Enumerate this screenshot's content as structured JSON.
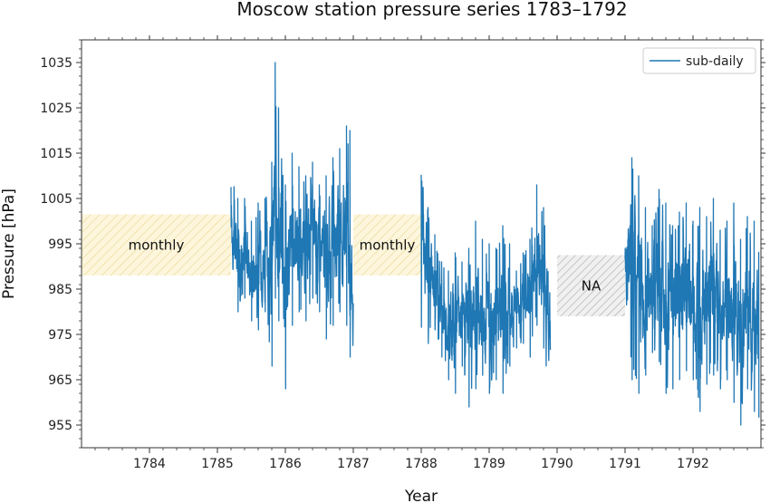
{
  "chart_data": {
    "type": "line",
    "title": "Moscow station pressure series 1783–1792",
    "xlabel": "Year",
    "ylabel": "Pressure [hPa]",
    "xlim": [
      1783.0,
      1793.0
    ],
    "ylim": [
      950,
      1040
    ],
    "x_ticks": [
      1784,
      1785,
      1786,
      1787,
      1788,
      1789,
      1790,
      1791,
      1792
    ],
    "x_tick_labels": [
      "1784",
      "1785",
      "1786",
      "1787",
      "1788",
      "1789",
      "1790",
      "1791",
      "1792"
    ],
    "y_ticks": [
      955,
      965,
      975,
      985,
      995,
      1005,
      1015,
      1025,
      1035
    ],
    "y_tick_labels": [
      "955",
      "965",
      "975",
      "985",
      "995",
      "1005",
      "1015",
      "1025",
      "1035"
    ],
    "grid": false,
    "legend_position": "top-right",
    "series": [
      {
        "name": "sub-daily",
        "color": "#1f77b4",
        "segments": [
          {
            "x": [
              1785.2,
              1785.3,
              1785.4,
              1785.5,
              1785.6,
              1785.7,
              1785.8,
              1785.85,
              1785.9,
              1786.0,
              1786.1,
              1786.2,
              1786.3,
              1786.4,
              1786.5,
              1786.6,
              1786.7,
              1786.8,
              1786.9,
              1786.95,
              1787.0
            ],
            "min": [
              986,
              980,
              983,
              978,
              976,
              980,
              968,
              983,
              978,
              963,
              977,
              980,
              978,
              983,
              980,
              974,
              977,
              980,
              977,
              970,
              959
            ],
            "max": [
              1013,
              1005,
              1005,
              1000,
              1004,
              1005,
              1013,
              1035,
              1025,
              1008,
              1015,
              1012,
              1010,
              1013,
              1008,
              1010,
              1014,
              1016,
              1021,
              1020,
              1000
            ]
          },
          {
            "x": [
              1788.0,
              1788.1,
              1788.2,
              1788.3,
              1788.4,
              1788.5,
              1788.6,
              1788.7,
              1788.8,
              1788.9,
              1789.0,
              1789.1,
              1789.2,
              1789.3,
              1789.4,
              1789.5,
              1789.6,
              1789.7,
              1789.8,
              1789.9
            ],
            "min": [
              975,
              973,
              976,
              970,
              965,
              962,
              968,
              959,
              963,
              966,
              962,
              965,
              962,
              968,
              972,
              973,
              970,
              977,
              972,
              959
            ],
            "max": [
              1012,
              1003,
              997,
              991,
              989,
              993,
              991,
              994,
              1000,
              996,
              995,
              994,
              999,
              995,
              989,
              993,
              996,
              1008,
              1003,
              990
            ]
          },
          {
            "x": [
              1791.0,
              1791.1,
              1791.2,
              1791.3,
              1791.4,
              1791.5,
              1791.6,
              1791.7,
              1791.8,
              1791.9,
              1792.0,
              1792.1,
              1792.2,
              1792.3,
              1792.4,
              1792.5,
              1792.6,
              1792.7,
              1792.8,
              1792.9,
              1792.97
            ],
            "min": [
              978,
              965,
              962,
              966,
              971,
              969,
              962,
              963,
              965,
              967,
              965,
              958,
              964,
              966,
              963,
              965,
              960,
              955,
              963,
              958,
              955
            ],
            "max": [
              999,
              1014,
              1010,
              1003,
              999,
              1007,
              1004,
              999,
              1002,
              1004,
              1000,
              1003,
              1001,
              1005,
              998,
              1000,
              1004,
              996,
              1001,
              1000,
              996
            ]
          }
        ]
      }
    ],
    "regions": [
      {
        "label": "monthly",
        "x0": 1783.0,
        "x1": 1785.2,
        "y0": 988,
        "y1": 1001.5,
        "style": "yellow-hatch"
      },
      {
        "label": "monthly",
        "x0": 1787.0,
        "x1": 1788.0,
        "y0": 988,
        "y1": 1001.5,
        "style": "yellow-hatch"
      },
      {
        "label": "NA",
        "x0": 1790.0,
        "x1": 1791.0,
        "y0": 979,
        "y1": 992.5,
        "style": "grey-hatch"
      }
    ],
    "colors": {
      "monthly_fill": "#fdf6dc",
      "monthly_hatch": "#e8d590",
      "na_fill": "#f0f0f0",
      "na_hatch": "#a8a8a8",
      "line": "#1f77b4"
    }
  }
}
